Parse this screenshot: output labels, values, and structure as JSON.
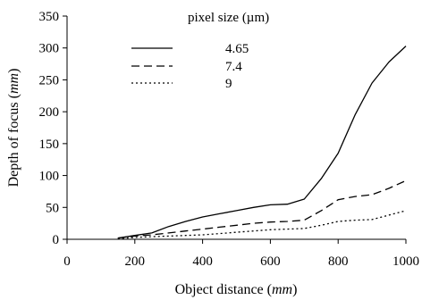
{
  "chart_data": {
    "type": "line",
    "title": "",
    "xlabel": "Object distance (mm)",
    "ylabel": "Depth of focus (mm)",
    "xlim": [
      0,
      1000
    ],
    "ylim": [
      0,
      350
    ],
    "xticks": [
      0,
      200,
      400,
      600,
      800,
      1000
    ],
    "yticks": [
      0,
      50,
      100,
      150,
      200,
      250,
      300,
      350
    ],
    "grid": false,
    "legend": {
      "title": "pixel size (µm)",
      "placement": "top-center"
    },
    "series": [
      {
        "name": "4.65",
        "style": "solid",
        "color": "#000000",
        "x": [
          150,
          200,
          250,
          300,
          350,
          400,
          450,
          500,
          550,
          600,
          650,
          700,
          750,
          800,
          850,
          900,
          950,
          1000
        ],
        "y": [
          2,
          6,
          10,
          20,
          28,
          35,
          40,
          45,
          50,
          54,
          55,
          63,
          95,
          135,
          195,
          245,
          278,
          303
        ]
      },
      {
        "name": "7.4",
        "style": "dashed",
        "color": "#000000",
        "x": [
          150,
          200,
          250,
          300,
          350,
          400,
          450,
          500,
          550,
          600,
          650,
          700,
          750,
          800,
          850,
          900,
          950,
          1000
        ],
        "y": [
          2,
          5,
          7,
          10,
          13,
          16,
          19,
          22,
          25,
          27,
          28,
          30,
          45,
          62,
          67,
          70,
          80,
          92
        ]
      },
      {
        "name": "9",
        "style": "dotted",
        "color": "#000000",
        "x": [
          150,
          200,
          250,
          300,
          350,
          400,
          450,
          500,
          550,
          600,
          650,
          700,
          750,
          800,
          850,
          900,
          950,
          1000
        ],
        "y": [
          1,
          3,
          4,
          5,
          6,
          7,
          9,
          11,
          13,
          15,
          16,
          17,
          22,
          28,
          30,
          31,
          38,
          45
        ]
      }
    ]
  }
}
